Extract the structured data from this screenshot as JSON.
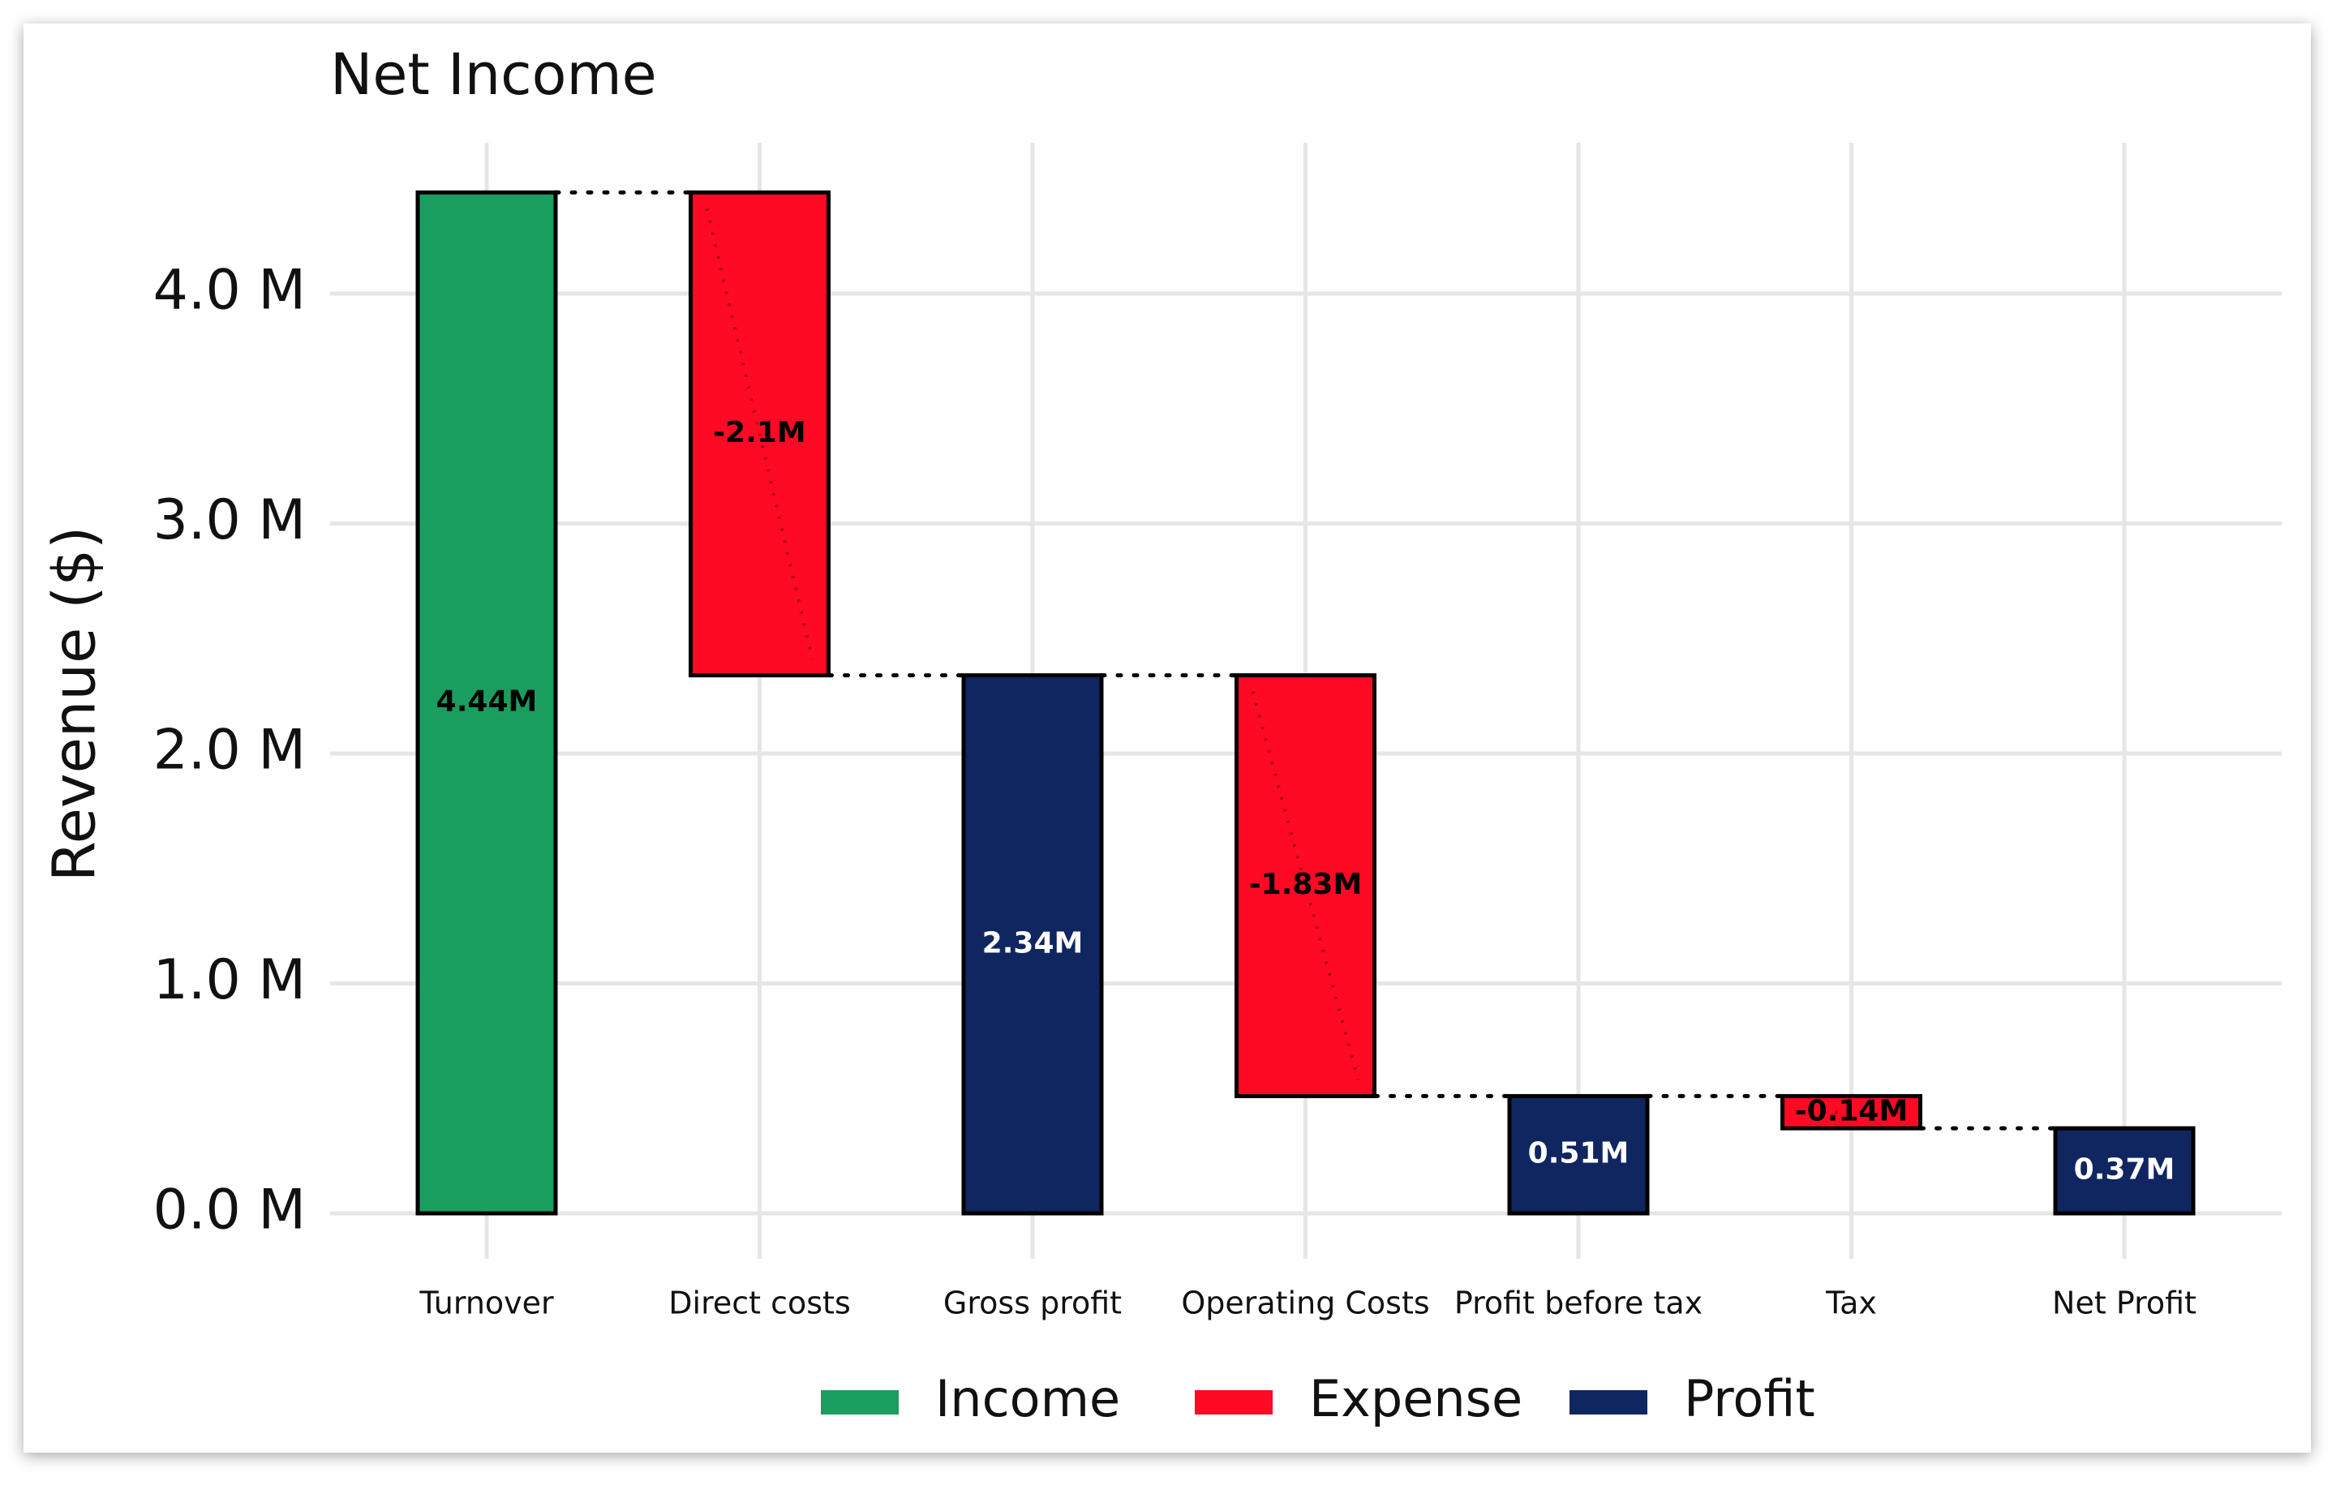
{
  "chart_data": {
    "type": "waterfall",
    "title": "Net Income",
    "ylabel": "Revenue ($)",
    "xlabel": "",
    "ylim": [
      -0.08,
      4.76
    ],
    "yticks": [
      0,
      1,
      2,
      3,
      4
    ],
    "ytick_labels": [
      "0.0 M",
      "1.0 M",
      "2.0 M",
      "3.0 M",
      "4.0 M"
    ],
    "grid": true,
    "legend_position": "bottom",
    "categories": [
      "Turnover",
      "Direct costs",
      "Gross profit",
      "Operating Costs",
      "Profit before tax",
      "Tax",
      "Net Profit"
    ],
    "bars": [
      {
        "category": "Turnover",
        "start": 0,
        "end": 4.44,
        "label": "4.44M",
        "type": "Income"
      },
      {
        "category": "Direct costs",
        "start": 4.44,
        "end": 2.34,
        "label": "-2.1M",
        "type": "Expense"
      },
      {
        "category": "Gross profit",
        "start": 0,
        "end": 2.34,
        "label": "2.34M",
        "type": "Profit"
      },
      {
        "category": "Operating Costs",
        "start": 2.34,
        "end": 0.51,
        "label": "-1.83M",
        "type": "Expense"
      },
      {
        "category": "Profit before tax",
        "start": 0,
        "end": 0.51,
        "label": "0.51M",
        "type": "Profit"
      },
      {
        "category": "Tax",
        "start": 0.51,
        "end": 0.37,
        "label": "-0.14M",
        "type": "Expense"
      },
      {
        "category": "Net Profit",
        "start": 0,
        "end": 0.37,
        "label": "0.37M",
        "type": "Profit"
      }
    ],
    "legend": [
      {
        "name": "Income",
        "color": "#1a9e5f"
      },
      {
        "name": "Expense",
        "color": "#ff0a24"
      },
      {
        "name": "Profit",
        "color": "#0f2660"
      }
    ],
    "label_colors": {
      "Income": "#000000",
      "Expense": "#000000",
      "Profit": "#ffffff"
    }
  }
}
